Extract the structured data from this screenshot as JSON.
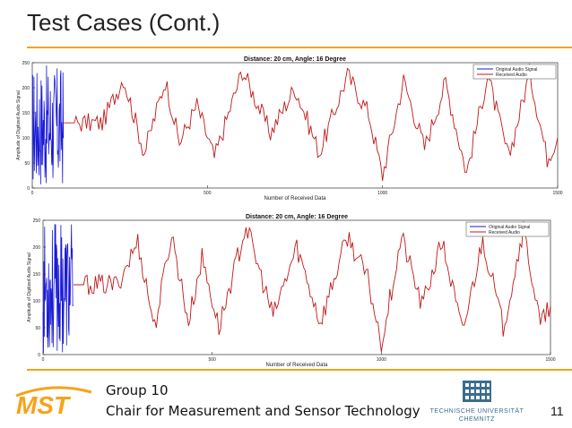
{
  "slide": {
    "title": "Test Cases (Cont.)",
    "page_number": "11",
    "footer_group": "Group 10",
    "footer_chair": "Chair for Measurement and Sensor Technology",
    "logo_text": "MST",
    "university_line1": "TECHNISCHE UNIVERSITÄT",
    "university_line2": "CHEMNITZ"
  },
  "colors": {
    "accent": "#f6a31a",
    "original": "#1a1ad6",
    "received": "#c01818"
  },
  "chart_data": [
    {
      "type": "line",
      "title": "Distance: 20 cm, Angle: 16 Degree",
      "xlabel": "Number of Received Data",
      "ylabel": "Amplitude of Digitized Audio Signal",
      "xlim": [
        0,
        1500
      ],
      "ylim": [
        0,
        250
      ],
      "xticks": [
        "0",
        "500",
        "1000",
        "1500"
      ],
      "yticks": [
        "0",
        "50",
        "100",
        "150",
        "200",
        "250"
      ],
      "legend": [
        "Original Audio Signal",
        "Received Audio"
      ],
      "legend_position": "top-right",
      "series": [
        {
          "name": "Original Audio Signal",
          "x_range": [
            0,
            90
          ],
          "values_range": [
            0,
            245
          ]
        },
        {
          "name": "Received Audio",
          "x": [
            90,
            200,
            260,
            320,
            380,
            420,
            470,
            520,
            600,
            680,
            750,
            820,
            900,
            960,
            1000,
            1060,
            1120,
            1180,
            1240,
            1300,
            1360,
            1420,
            1470,
            1500
          ],
          "values": [
            130,
            130,
            220,
            70,
            215,
            90,
            165,
            60,
            235,
            110,
            200,
            70,
            225,
            150,
            25,
            215,
            80,
            210,
            30,
            225,
            60,
            230,
            60,
            100
          ]
        }
      ]
    },
    {
      "type": "line",
      "title": "Distance: 20 cm, Angle: 16 Degree",
      "xlabel": "Number of Received Data",
      "ylabel": "Amplitude of Digitized Audio Signal",
      "xlim": [
        0,
        1500
      ],
      "ylim": [
        0,
        250
      ],
      "xticks": [
        "0",
        "500",
        "1000",
        "1500"
      ],
      "yticks": [
        "0",
        "50",
        "100",
        "150",
        "200",
        "250"
      ],
      "legend": [
        "Original Audio Signal",
        "Received Audio"
      ],
      "legend_position": "top-right",
      "series": [
        {
          "name": "Original Audio Signal",
          "x_range": [
            0,
            90
          ],
          "values_range": [
            0,
            245
          ]
        },
        {
          "name": "Received Audio",
          "x": [
            90,
            220,
            280,
            330,
            380,
            430,
            470,
            520,
            600,
            680,
            750,
            820,
            900,
            960,
            1000,
            1060,
            1120,
            1180,
            1240,
            1300,
            1360,
            1420,
            1470,
            1500
          ],
          "values": [
            130,
            130,
            210,
            50,
            225,
            60,
            180,
            50,
            240,
            70,
            200,
            60,
            220,
            140,
            20,
            220,
            90,
            210,
            40,
            215,
            50,
            235,
            55,
            90
          ]
        }
      ]
    }
  ]
}
